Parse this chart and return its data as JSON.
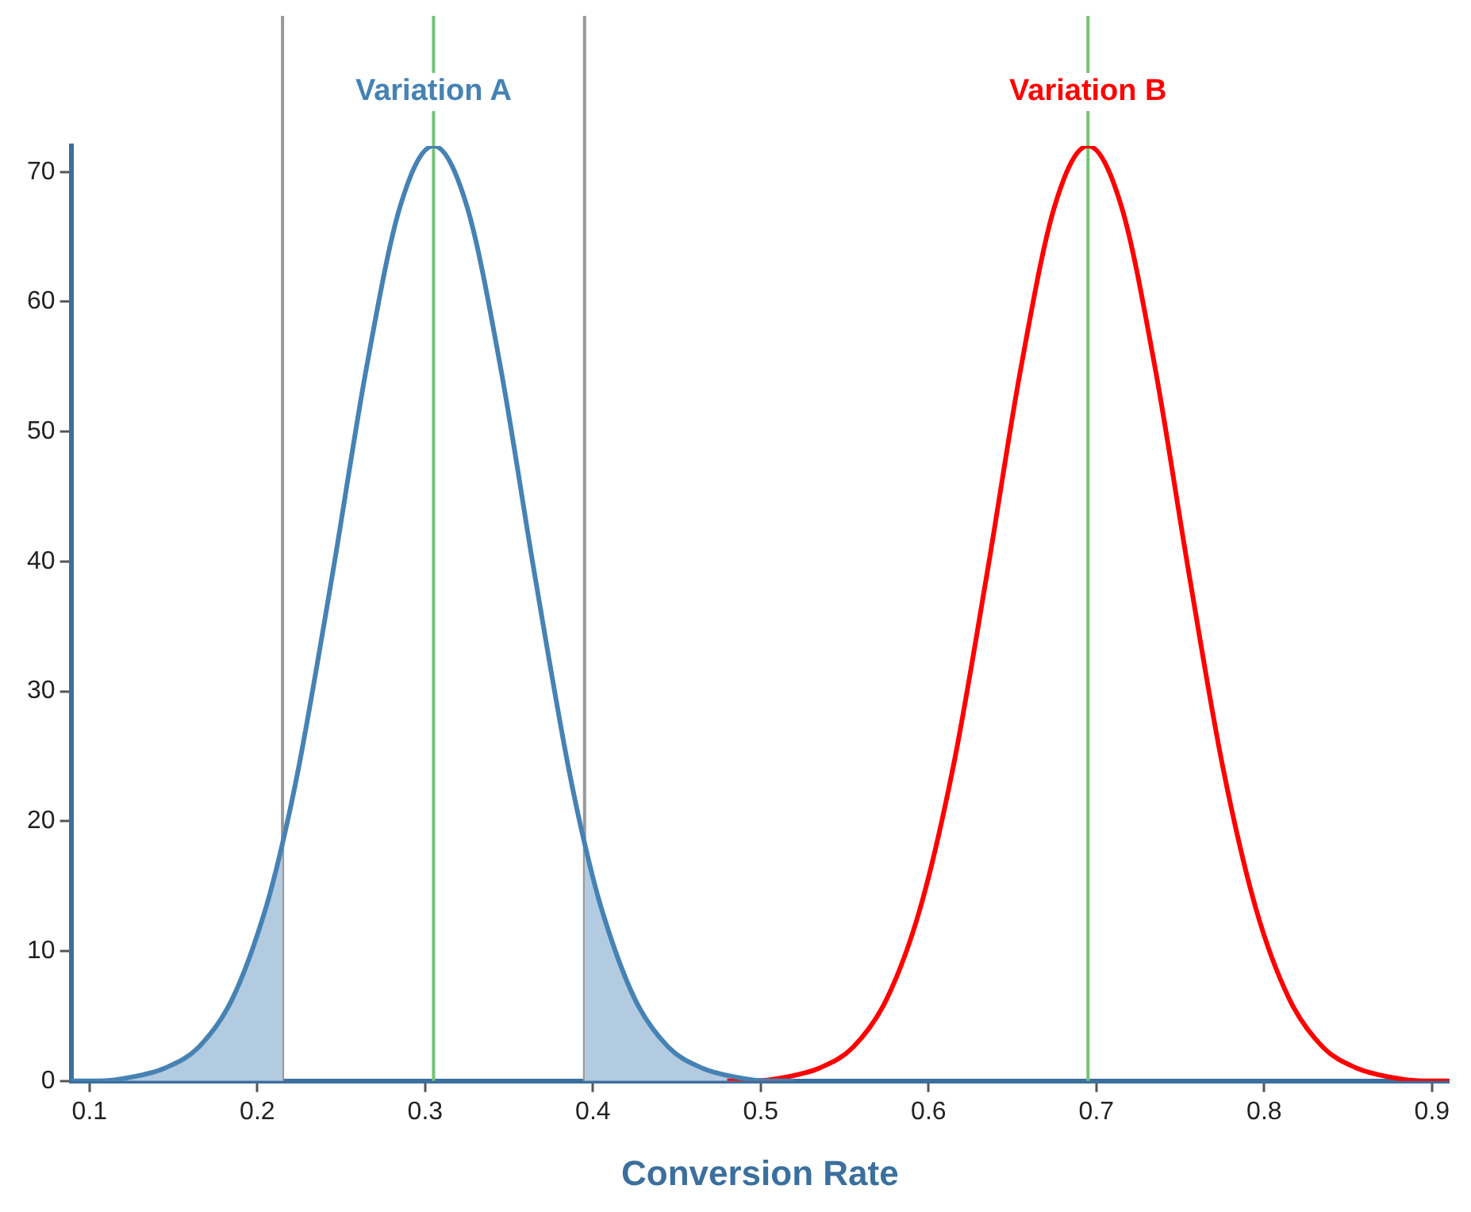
{
  "chart_data": {
    "type": "line",
    "xlabel": "Conversion Rate",
    "xlim": [
      0.089,
      0.91
    ],
    "xticks": [
      0.1,
      0.2,
      0.3,
      0.4,
      0.5,
      0.6,
      0.7,
      0.8,
      0.9
    ],
    "ylim": [
      0,
      72
    ],
    "yticks": [
      0,
      10,
      20,
      30,
      40,
      50,
      60,
      70
    ],
    "grid": false,
    "legend": false,
    "marker": "none",
    "series": [
      {
        "type": "area",
        "color": "#b3cbe0",
        "x": [
          0.105,
          0.125,
          0.145,
          0.165,
          0.185,
          0.205,
          0.215
        ],
        "values": [
          0,
          0.3,
          1,
          2.6,
          6.3,
          13.3,
          18.3
        ]
      },
      {
        "type": "area",
        "color": "#b3cbe0",
        "x": [
          0.395,
          0.405,
          0.425,
          0.445,
          0.465,
          0.485,
          0.505
        ],
        "values": [
          18.3,
          13.3,
          6.3,
          2.6,
          1,
          0.3,
          0
        ]
      },
      {
        "type": "line",
        "name": "Variation A",
        "color": "#4682b4",
        "x": [
          0.089,
          0.105,
          0.125,
          0.145,
          0.165,
          0.185,
          0.205,
          0.215,
          0.225,
          0.245,
          0.265,
          0.285,
          0.305,
          0.325,
          0.345,
          0.365,
          0.385,
          0.395,
          0.405,
          0.425,
          0.445,
          0.465,
          0.485,
          0.505,
          0.52
        ],
        "values": [
          0,
          0,
          0.3,
          1,
          2.6,
          6.3,
          13.3,
          18.3,
          24.4,
          39.2,
          54.9,
          67.3,
          72,
          67.3,
          54.9,
          39.2,
          24.4,
          18.3,
          13.3,
          6.3,
          2.6,
          1,
          0.3,
          0,
          0
        ]
      },
      {
        "type": "line",
        "name": "Variation B",
        "color": "#ff0000",
        "x": [
          0.48,
          0.495,
          0.515,
          0.535,
          0.555,
          0.575,
          0.595,
          0.615,
          0.635,
          0.655,
          0.675,
          0.695,
          0.715,
          0.735,
          0.755,
          0.775,
          0.795,
          0.815,
          0.835,
          0.855,
          0.875,
          0.895,
          0.91
        ],
        "values": [
          0,
          0,
          0.3,
          1,
          2.6,
          6.3,
          13.3,
          24.4,
          39.2,
          54.9,
          67.3,
          72,
          67.3,
          54.9,
          39.2,
          24.4,
          13.3,
          6.3,
          2.6,
          1,
          0.3,
          0,
          0
        ]
      }
    ],
    "ref_lines": [
      {
        "axis": "x",
        "value": 0.215,
        "color": "#999999"
      },
      {
        "axis": "x",
        "value": 0.395,
        "color": "#999999"
      },
      {
        "axis": "x",
        "value": 0.305,
        "color": "#74c476"
      },
      {
        "axis": "x",
        "value": 0.695,
        "color": "#74c476"
      }
    ]
  }
}
